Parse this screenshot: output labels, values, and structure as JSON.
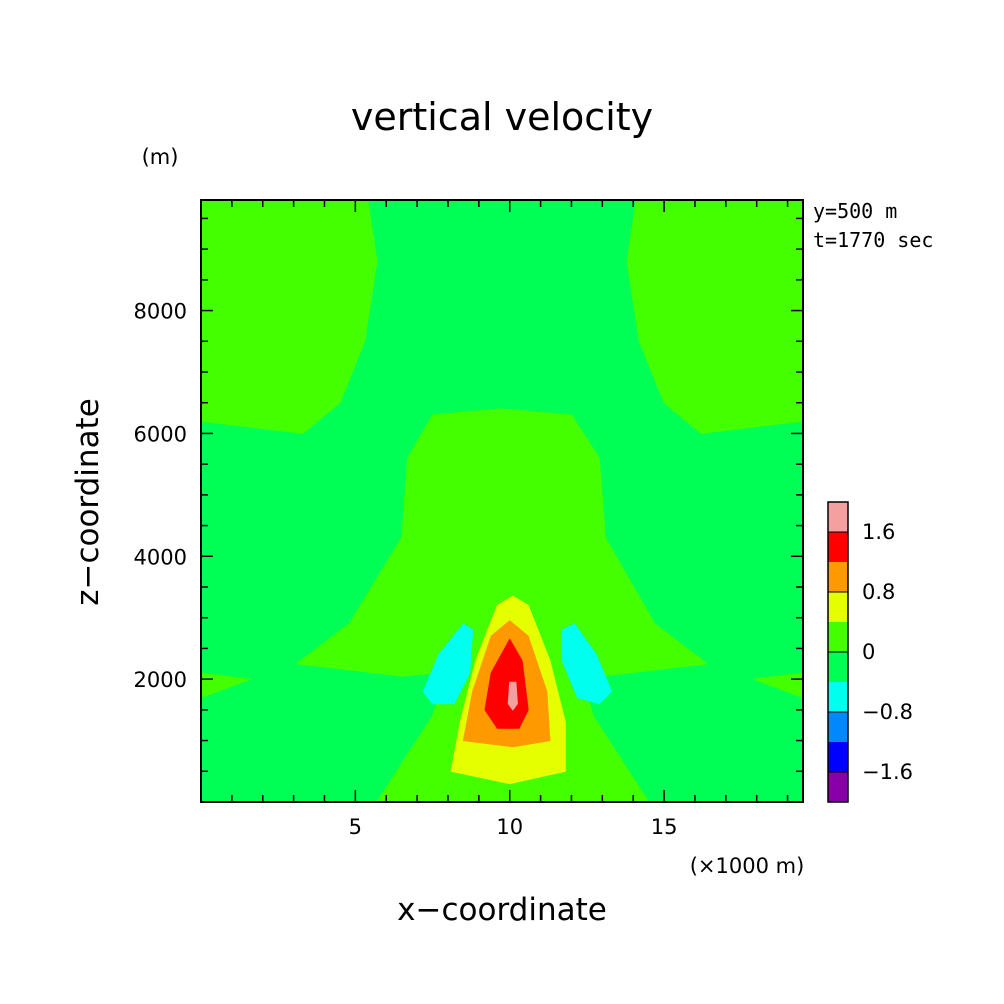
{
  "chart_data": {
    "type": "contour",
    "title": "vertical velocity",
    "xlabel": "x−coordinate",
    "ylabel": "z−coordinate",
    "x_unit": "(×1000 m)",
    "y_unit": "(m)",
    "xlim": [
      0,
      19.5
    ],
    "ylim": [
      0,
      9800
    ],
    "x_ticks": [
      5,
      10,
      15
    ],
    "y_ticks": [
      2000,
      4000,
      6000,
      8000
    ],
    "annotations": [
      "y=500 m",
      "t=1770 sec"
    ],
    "levels": [
      {
        "range": [
          1.6,
          2.0
        ],
        "color": "#f5a0a0"
      },
      {
        "range": [
          1.2,
          1.6
        ],
        "color": "#ff0000"
      },
      {
        "range": [
          0.8,
          1.2
        ],
        "color": "#ff9900"
      },
      {
        "range": [
          0.4,
          0.8
        ],
        "color": "#e6ff00"
      },
      {
        "range": [
          0.0,
          0.4
        ],
        "color": "#44ff00"
      },
      {
        "range": [
          -0.4,
          0.0
        ],
        "color": "#00ff55"
      },
      {
        "range": [
          -0.8,
          -0.4
        ],
        "color": "#00ffee"
      },
      {
        "range": [
          -1.2,
          -0.8
        ],
        "color": "#0088ff"
      },
      {
        "range": [
          -1.6,
          -1.2
        ],
        "color": "#0000ff"
      },
      {
        "range": [
          -2.0,
          -1.6
        ],
        "color": "#8800aa"
      }
    ],
    "colorbar_labels": [
      {
        "value": 1.6,
        "text": "1.6"
      },
      {
        "value": 0.8,
        "text": "0.8"
      },
      {
        "value": 0.0,
        "text": "0"
      },
      {
        "value": -0.8,
        "text": "−0.8"
      },
      {
        "value": -1.6,
        "text": "−1.6"
      }
    ],
    "regions": [
      {
        "name": "positive-left-top",
        "color": "#44ff00",
        "points": [
          [
            0,
            9800
          ],
          [
            5.4,
            9800
          ],
          [
            5.7,
            8800
          ],
          [
            5.3,
            7500
          ],
          [
            4.5,
            6500
          ],
          [
            3.3,
            6000
          ],
          [
            0,
            6200
          ]
        ]
      },
      {
        "name": "positive-right-top",
        "color": "#44ff00",
        "points": [
          [
            19.5,
            9800
          ],
          [
            14.1,
            9800
          ],
          [
            13.8,
            8800
          ],
          [
            14.2,
            7500
          ],
          [
            15.0,
            6500
          ],
          [
            16.2,
            6000
          ],
          [
            19.5,
            6200
          ]
        ]
      },
      {
        "name": "positive-center-plume",
        "color": "#44ff00",
        "points": [
          [
            3.1,
            2250
          ],
          [
            4.8,
            2900
          ],
          [
            6.5,
            4300
          ],
          [
            6.7,
            5600
          ],
          [
            7.5,
            6300
          ],
          [
            9.7,
            6400
          ],
          [
            12.0,
            6300
          ],
          [
            12.9,
            5600
          ],
          [
            13.1,
            4300
          ],
          [
            14.7,
            2900
          ],
          [
            16.4,
            2250
          ],
          [
            13.0,
            2050
          ],
          [
            10.0,
            2200
          ],
          [
            6.5,
            2050
          ]
        ]
      },
      {
        "name": "positive-left-lobe",
        "color": "#44ff00",
        "points": [
          [
            0,
            1700
          ],
          [
            1.6,
            2000
          ],
          [
            0,
            2100
          ]
        ]
      },
      {
        "name": "positive-right-lobe",
        "color": "#44ff00",
        "points": [
          [
            19.5,
            1700
          ],
          [
            17.9,
            2000
          ],
          [
            19.5,
            2100
          ]
        ]
      },
      {
        "name": "positive-core-base",
        "color": "#44ff00",
        "points": [
          [
            5.7,
            0
          ],
          [
            7.5,
            1400
          ],
          [
            8.3,
            2600
          ],
          [
            9.0,
            3300
          ],
          [
            10.1,
            3450
          ],
          [
            11.4,
            3300
          ],
          [
            12.1,
            2600
          ],
          [
            12.7,
            1400
          ],
          [
            14.5,
            0
          ]
        ]
      },
      {
        "name": "updraft-0.4",
        "color": "#e6ff00",
        "points": [
          [
            8.1,
            500
          ],
          [
            8.4,
            1300
          ],
          [
            8.9,
            2300
          ],
          [
            9.6,
            3200
          ],
          [
            10.1,
            3350
          ],
          [
            10.6,
            3200
          ],
          [
            11.3,
            2300
          ],
          [
            11.8,
            1300
          ],
          [
            11.8,
            500
          ],
          [
            10.0,
            300
          ]
        ]
      },
      {
        "name": "updraft-0.8",
        "color": "#ff9900",
        "points": [
          [
            8.5,
            1000
          ],
          [
            8.8,
            1800
          ],
          [
            9.4,
            2700
          ],
          [
            10.0,
            2950
          ],
          [
            10.6,
            2700
          ],
          [
            11.2,
            1800
          ],
          [
            11.3,
            1000
          ],
          [
            10.1,
            900
          ]
        ]
      },
      {
        "name": "updraft-1.2",
        "color": "#ff0000",
        "points": [
          [
            9.2,
            1500
          ],
          [
            9.4,
            2100
          ],
          [
            10.0,
            2650
          ],
          [
            10.4,
            2300
          ],
          [
            10.6,
            1500
          ],
          [
            10.3,
            1200
          ],
          [
            9.6,
            1200
          ]
        ]
      },
      {
        "name": "updraft-1.6",
        "color": "#f5a0a0",
        "points": [
          [
            9.95,
            1600
          ],
          [
            10.0,
            1950
          ],
          [
            10.2,
            1950
          ],
          [
            10.25,
            1600
          ],
          [
            10.1,
            1500
          ]
        ]
      },
      {
        "name": "downdraft-left",
        "color": "#00ffee",
        "points": [
          [
            7.2,
            1800
          ],
          [
            7.7,
            2400
          ],
          [
            8.5,
            2900
          ],
          [
            8.8,
            2800
          ],
          [
            8.7,
            2100
          ],
          [
            8.2,
            1600
          ],
          [
            7.5,
            1600
          ]
        ]
      },
      {
        "name": "downdraft-right",
        "color": "#00ffee",
        "points": [
          [
            11.7,
            2800
          ],
          [
            12.1,
            2900
          ],
          [
            12.8,
            2400
          ],
          [
            13.3,
            1800
          ],
          [
            12.9,
            1600
          ],
          [
            12.2,
            1700
          ],
          [
            11.7,
            2300
          ]
        ]
      }
    ]
  }
}
